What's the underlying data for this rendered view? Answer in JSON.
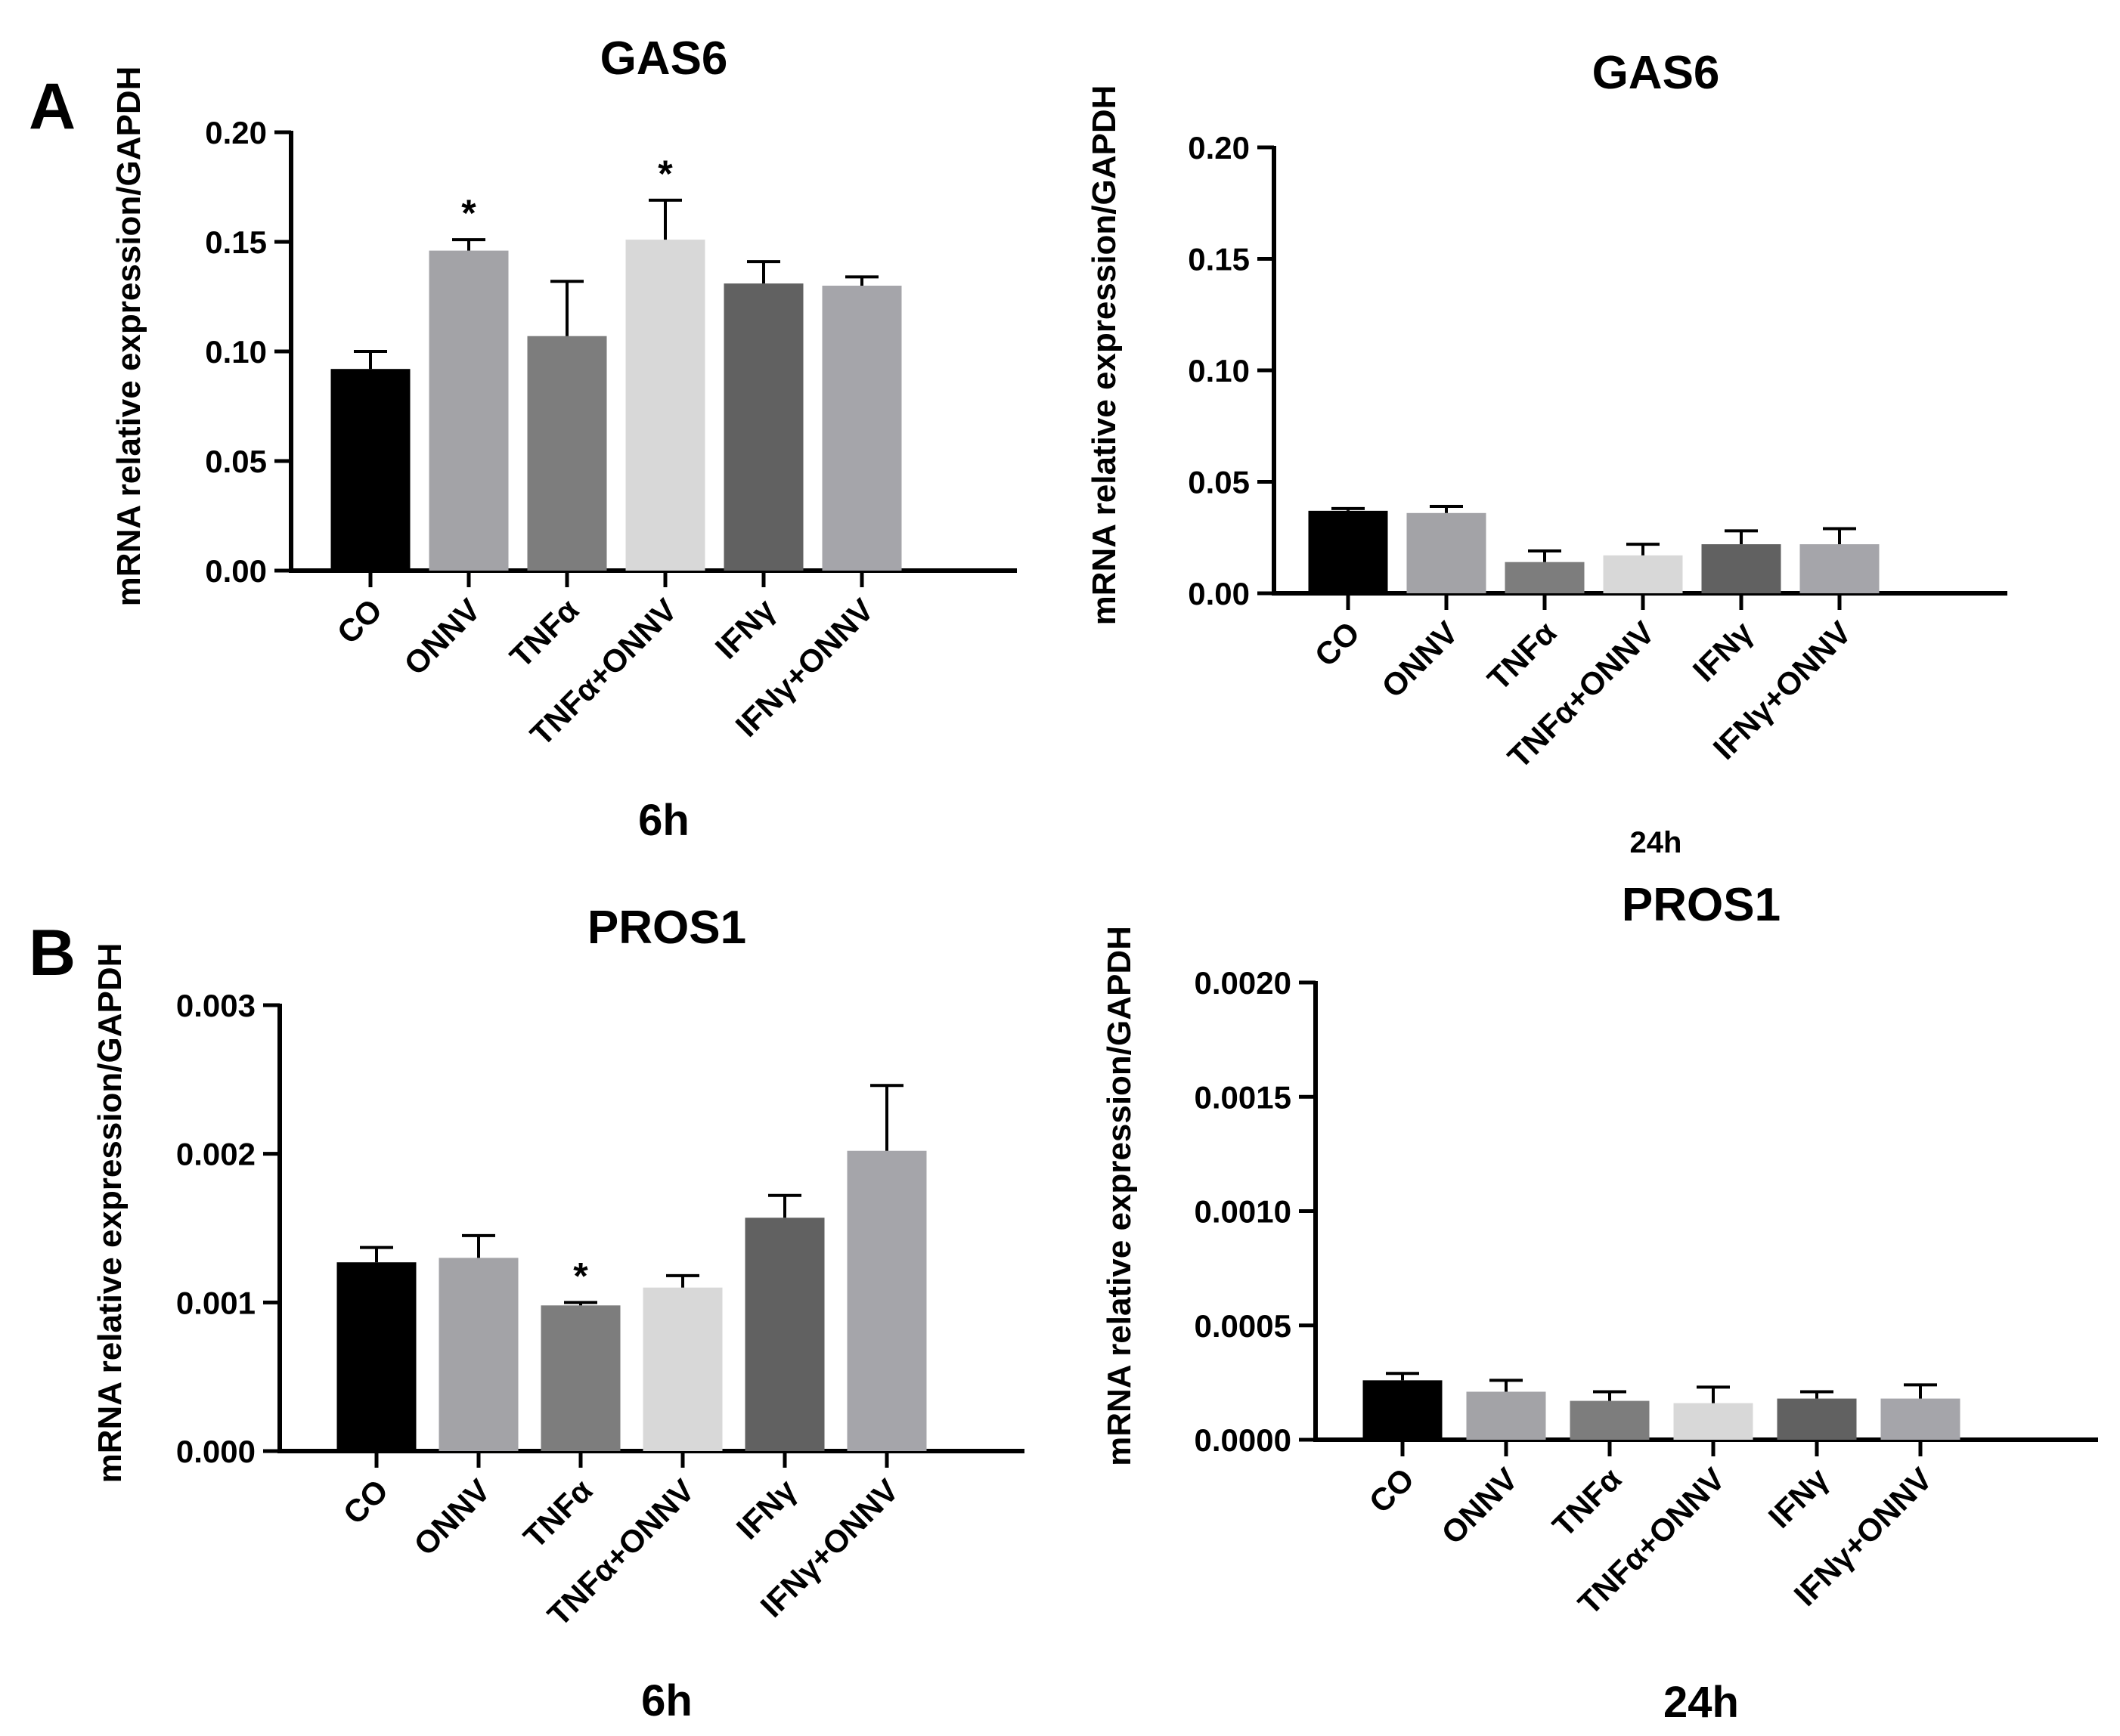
{
  "panel_labels": [
    "A",
    "B"
  ],
  "colors": [
    "#000000",
    "#a3a3a7",
    "#7d7d7d",
    "#d8d8d8",
    "#616161",
    "#a5a5aa"
  ],
  "chart_data": [
    {
      "type": "bar",
      "title": "GAS6",
      "ylabel": "mRNA relative expression/GAPDH",
      "xlabel": "6h",
      "categories": [
        "CO",
        "ONNV",
        "TNFα",
        "TNFα+ONNV",
        "IFNγ",
        "IFNγ+ONNV"
      ],
      "values": [
        0.092,
        0.146,
        0.107,
        0.151,
        0.131,
        0.13
      ],
      "errors": [
        0.008,
        0.005,
        0.025,
        0.018,
        0.01,
        0.004
      ],
      "significance": [
        "",
        "*",
        "",
        "*",
        "",
        ""
      ],
      "ylim": [
        0,
        0.2
      ],
      "yticks": [
        "0.00",
        "0.05",
        "0.10",
        "0.15",
        "0.20"
      ]
    },
    {
      "type": "bar",
      "title": "GAS6",
      "ylabel": "mRNA relative expression/GAPDH",
      "xlabel": "24h",
      "categories": [
        "CO",
        "ONNV",
        "TNFα",
        "TNFα+ONNV",
        "IFNγ",
        "IFNγ+ONNV"
      ],
      "values": [
        0.037,
        0.036,
        0.014,
        0.017,
        0.022,
        0.022
      ],
      "errors": [
        0.001,
        0.003,
        0.005,
        0.005,
        0.006,
        0.007
      ],
      "significance": [
        "",
        "",
        "",
        "",
        "",
        ""
      ],
      "ylim": [
        0,
        0.2
      ],
      "yticks": [
        "0.00",
        "0.05",
        "0.10",
        "0.15",
        "0.20"
      ]
    },
    {
      "type": "bar",
      "title": "PROS1",
      "ylabel": "mRNA relative expression/GAPDH",
      "xlabel": "6h",
      "categories": [
        "CO",
        "ONNV",
        "TNFα",
        "TNFα+ONNV",
        "IFNγ",
        "IFNγ+ONNV"
      ],
      "values": [
        0.00127,
        0.0013,
        0.00098,
        0.0011,
        0.00157,
        0.00202
      ],
      "errors": [
        0.0001,
        0.00015,
        2e-05,
        8e-05,
        0.00015,
        0.00044
      ],
      "significance": [
        "",
        "",
        "*",
        "",
        "",
        ""
      ],
      "ylim": [
        0,
        0.003
      ],
      "yticks": [
        "0.000",
        "0.001",
        "0.002",
        "0.003"
      ]
    },
    {
      "type": "bar",
      "title": "PROS1",
      "ylabel": "mRNA relative expression/GAPDH",
      "xlabel": "24h",
      "categories": [
        "CO",
        "ONNV",
        "TNFα",
        "TNFα+ONNV",
        "IFNγ",
        "IFNγ+ONNV"
      ],
      "values": [
        0.00026,
        0.00021,
        0.00017,
        0.00016,
        0.00018,
        0.00018
      ],
      "errors": [
        3e-05,
        5e-05,
        4e-05,
        7e-05,
        3e-05,
        6e-05
      ],
      "significance": [
        "",
        "",
        "",
        "",
        "",
        ""
      ],
      "ylim": [
        0,
        0.002
      ],
      "yticks": [
        "0.0000",
        "0.0005",
        "0.0010",
        "0.0015",
        "0.0020"
      ]
    }
  ]
}
